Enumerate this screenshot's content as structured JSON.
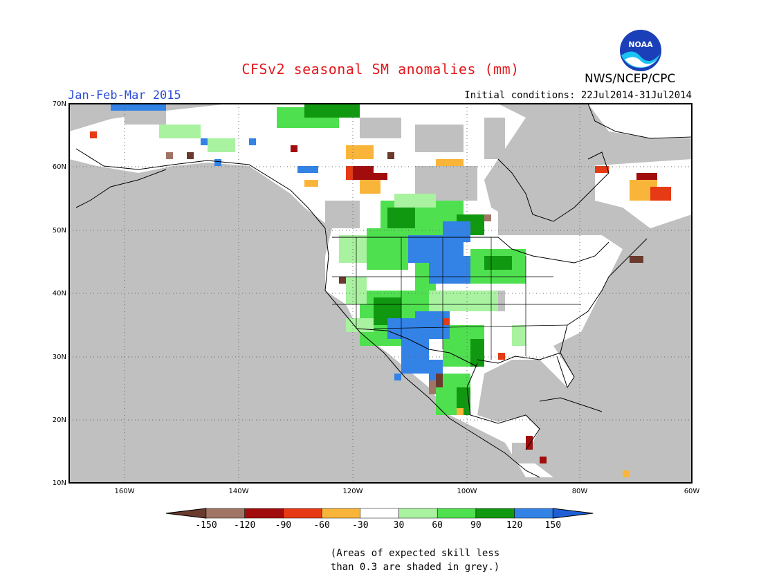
{
  "title": "CFSv2 seasonal SM anomalies (mm)",
  "period": "Jan-Feb-Mar 2015",
  "initial_conditions": "Initial conditions: 22Jul2014-31Jul2014",
  "agency": "NWS/NCEP/CPC",
  "logo_text": "NOAA",
  "lat_labels": [
    "70N",
    "60N",
    "50N",
    "40N",
    "30N",
    "20N",
    "10N"
  ],
  "lon_labels": [
    "160W",
    "140W",
    "120W",
    "100W",
    "80W",
    "60W"
  ],
  "legend": {
    "tick_labels": [
      "-150",
      "-120",
      "-90",
      "-60",
      "-30",
      "30",
      "60",
      "90",
      "120",
      "150"
    ],
    "colors": [
      "#6b3a2e",
      "#a17565",
      "#a10c0c",
      "#e63a14",
      "#f9b53a",
      "#ffffff",
      "#a8f2a0",
      "#4fe04f",
      "#119811",
      "#3382e6",
      "#1f5fd6"
    ]
  },
  "note_line1": "(Areas of expected skill less",
  "note_line2": "than 0.3 are shaded in grey.)",
  "colors": {
    "skill_grey": "#c0c0c0",
    "land_white": "#ffffff"
  }
}
